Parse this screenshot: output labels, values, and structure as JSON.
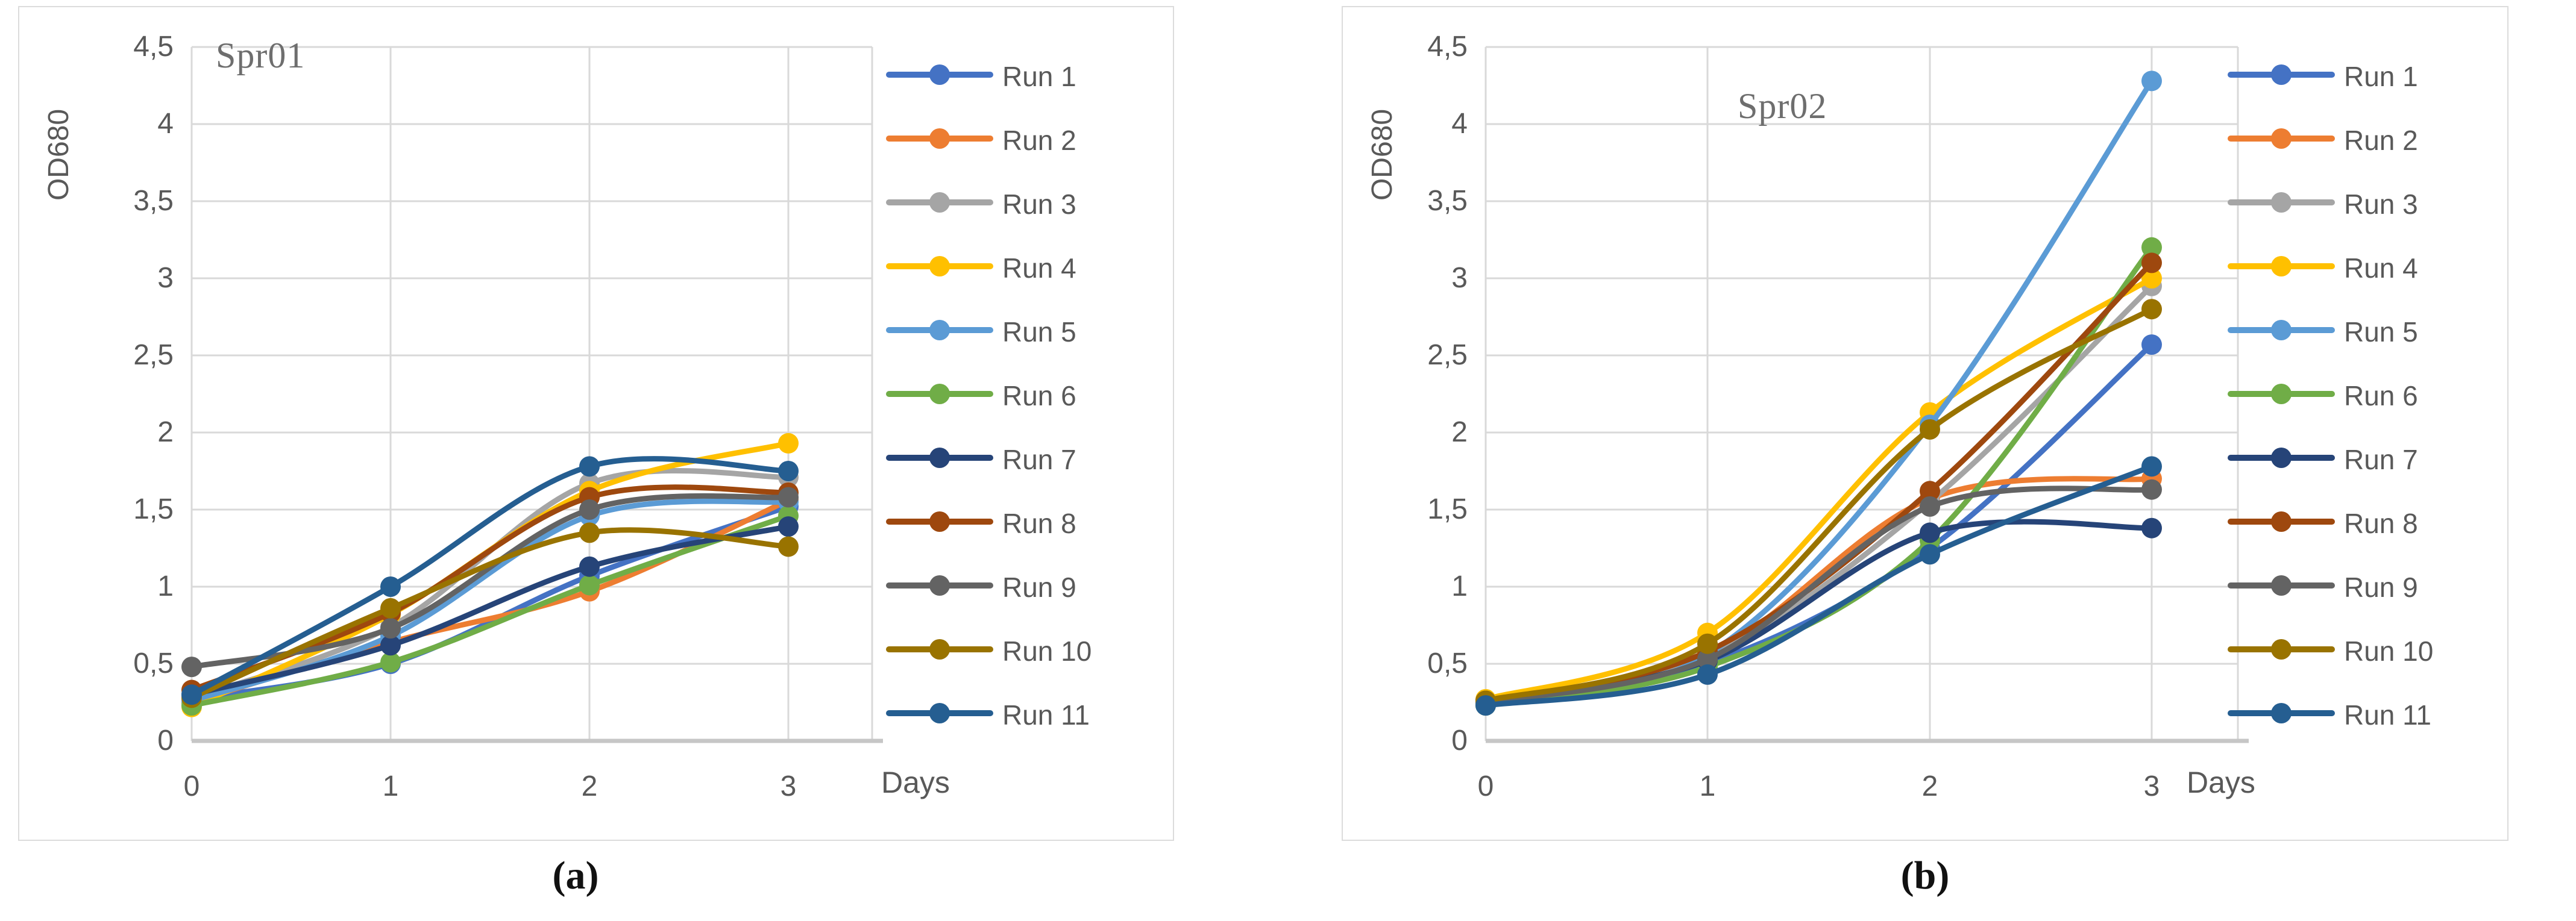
{
  "figure": {
    "captions": [
      {
        "label": "(a)"
      },
      {
        "label": "(b)"
      }
    ]
  },
  "chart_data": [
    {
      "type": "line",
      "title": "Spr01",
      "xlabel": "Days",
      "ylabel": "OD680",
      "categories": [
        "0",
        "1",
        "2",
        "3"
      ],
      "x_values": [
        0,
        1,
        2,
        3
      ],
      "ylim": [
        0,
        4.5
      ],
      "ytick_step": 0.5,
      "ytick_labels": [
        "0",
        "0,5",
        "1",
        "1,5",
        "2",
        "2,5",
        "3",
        "3,5",
        "4",
        "4,5"
      ],
      "grid": true,
      "legend_position": "right",
      "series": [
        {
          "name": "Run 1",
          "color": "#4472C4",
          "values": [
            0.27,
            0.5,
            1.07,
            1.52
          ]
        },
        {
          "name": "Run 2",
          "color": "#ED7D31",
          "values": [
            0.25,
            0.64,
            0.97,
            1.56
          ]
        },
        {
          "name": "Run 3",
          "color": "#A5A5A5",
          "values": [
            0.28,
            0.74,
            1.67,
            1.71
          ]
        },
        {
          "name": "Run 4",
          "color": "#FFC000",
          "values": [
            0.22,
            0.82,
            1.62,
            1.93
          ]
        },
        {
          "name": "Run 5",
          "color": "#5B9BD5",
          "values": [
            0.26,
            0.68,
            1.46,
            1.55
          ]
        },
        {
          "name": "Run 6",
          "color": "#70AD47",
          "values": [
            0.23,
            0.51,
            1.01,
            1.46
          ]
        },
        {
          "name": "Run 7",
          "color": "#264478",
          "values": [
            0.3,
            0.62,
            1.13,
            1.39
          ]
        },
        {
          "name": "Run 8",
          "color": "#9E480E",
          "values": [
            0.33,
            0.83,
            1.58,
            1.61
          ]
        },
        {
          "name": "Run 9",
          "color": "#636363",
          "values": [
            0.48,
            0.73,
            1.5,
            1.58
          ]
        },
        {
          "name": "Run 10",
          "color": "#997300",
          "values": [
            0.28,
            0.86,
            1.35,
            1.26
          ]
        },
        {
          "name": "Run 11",
          "color": "#255E91",
          "values": [
            0.3,
            1.0,
            1.78,
            1.75
          ]
        }
      ]
    },
    {
      "type": "line",
      "title": "Spr02",
      "xlabel": "Days",
      "ylabel": "OD680",
      "categories": [
        "0",
        "1",
        "2",
        "3"
      ],
      "x_values": [
        0,
        1,
        2,
        3
      ],
      "ylim": [
        0,
        4.5
      ],
      "ytick_step": 0.5,
      "ytick_labels": [
        "0",
        "0,5",
        "1",
        "1,5",
        "2",
        "2,5",
        "3",
        "3,5",
        "4",
        "4,5"
      ],
      "grid": true,
      "legend_position": "right",
      "series": [
        {
          "name": "Run 1",
          "color": "#4472C4",
          "values": [
            0.24,
            0.5,
            1.25,
            2.57
          ]
        },
        {
          "name": "Run 2",
          "color": "#ED7D31",
          "values": [
            0.25,
            0.55,
            1.57,
            1.7
          ]
        },
        {
          "name": "Run 3",
          "color": "#A5A5A5",
          "values": [
            0.24,
            0.55,
            1.55,
            2.95
          ]
        },
        {
          "name": "Run 4",
          "color": "#FFC000",
          "values": [
            0.27,
            0.7,
            2.13,
            3.0
          ]
        },
        {
          "name": "Run 5",
          "color": "#5B9BD5",
          "values": [
            0.25,
            0.56,
            2.05,
            4.28
          ]
        },
        {
          "name": "Run 6",
          "color": "#70AD47",
          "values": [
            0.23,
            0.48,
            1.3,
            3.2
          ]
        },
        {
          "name": "Run 7",
          "color": "#264478",
          "values": [
            0.26,
            0.52,
            1.35,
            1.38
          ]
        },
        {
          "name": "Run 8",
          "color": "#9E480E",
          "values": [
            0.26,
            0.58,
            1.62,
            3.1
          ]
        },
        {
          "name": "Run 9",
          "color": "#636363",
          "values": [
            0.25,
            0.53,
            1.52,
            1.63
          ]
        },
        {
          "name": "Run 10",
          "color": "#997300",
          "values": [
            0.26,
            0.63,
            2.02,
            2.8
          ]
        },
        {
          "name": "Run 11",
          "color": "#255E91",
          "values": [
            0.23,
            0.43,
            1.21,
            1.78
          ]
        }
      ]
    }
  ]
}
